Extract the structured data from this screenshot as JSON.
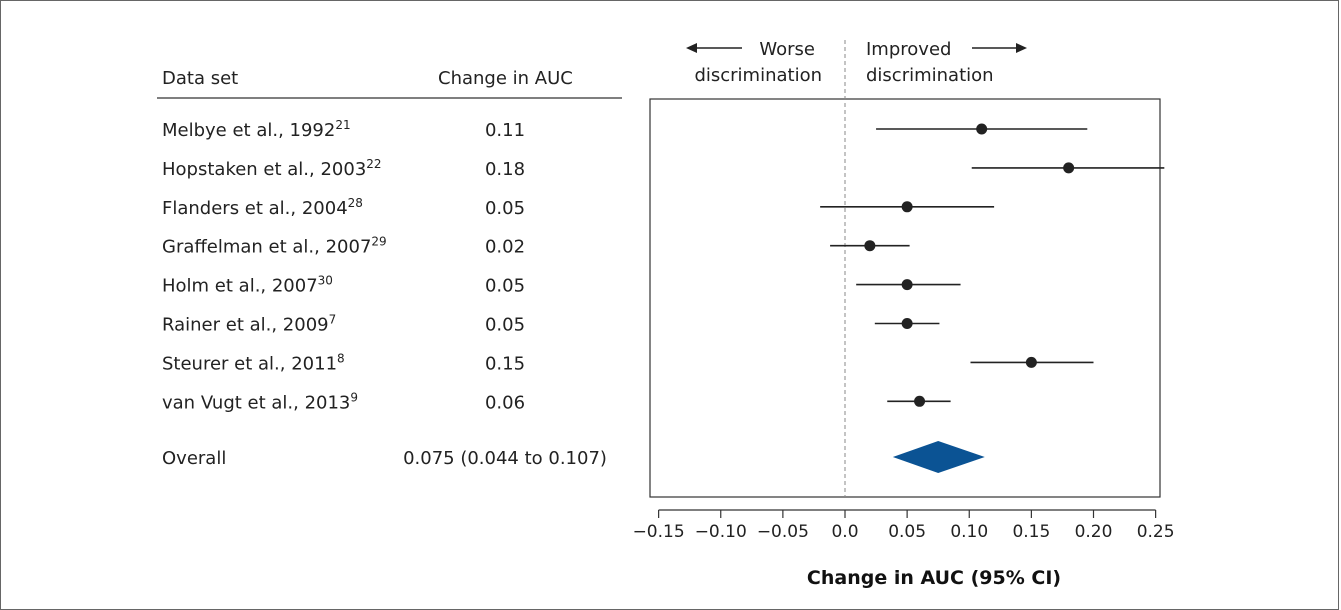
{
  "chart_data": {
    "type": "forest",
    "columns": {
      "dataset": "Data set",
      "change": "Change in AUC"
    },
    "xlabel": "Change in AUC (95% CI)",
    "direction_labels": {
      "left": [
        "Worse",
        "discrimination"
      ],
      "right": [
        "Improved",
        "discrimination"
      ]
    },
    "xlim": [
      -0.16,
      0.26
    ],
    "xticks": [
      -0.15,
      -0.1,
      -0.05,
      0.0,
      0.05,
      0.1,
      0.15,
      0.2,
      0.25
    ],
    "xtick_labels": [
      "−0.15",
      "−0.10",
      "−0.05",
      "0.0",
      "0.05",
      "0.10",
      "0.15",
      "0.20",
      "0.25"
    ],
    "reference_line": 0.0,
    "studies": [
      {
        "name": "Melbye et al., 1992",
        "ref": "21",
        "change_label": "0.11",
        "estimate": 0.11,
        "ci_low": 0.025,
        "ci_high": 0.195
      },
      {
        "name": "Hopstaken et al., 2003",
        "ref": "22",
        "change_label": "0.18",
        "estimate": 0.18,
        "ci_low": 0.102,
        "ci_high": 0.257
      },
      {
        "name": "Flanders et al., 2004",
        "ref": "28",
        "change_label": "0.05",
        "estimate": 0.05,
        "ci_low": -0.02,
        "ci_high": 0.12
      },
      {
        "name": "Graffelman et al., 2007",
        "ref": "29",
        "change_label": "0.02",
        "estimate": 0.02,
        "ci_low": -0.012,
        "ci_high": 0.052
      },
      {
        "name": "Holm et al., 2007",
        "ref": "30",
        "change_label": "0.05",
        "estimate": 0.05,
        "ci_low": 0.009,
        "ci_high": 0.093
      },
      {
        "name": "Rainer et al., 2009",
        "ref": "7",
        "change_label": "0.05",
        "estimate": 0.05,
        "ci_low": 0.024,
        "ci_high": 0.076
      },
      {
        "name": "Steurer et al., 2011",
        "ref": "8",
        "change_label": "0.15",
        "estimate": 0.15,
        "ci_low": 0.101,
        "ci_high": 0.2
      },
      {
        "name": "van Vugt et al., 2013",
        "ref": "9",
        "change_label": "0.06",
        "estimate": 0.06,
        "ci_low": 0.034,
        "ci_high": 0.085
      }
    ],
    "overall": {
      "name": "Overall",
      "change_label": "0.075 (0.044 to 0.107)",
      "estimate": 0.075,
      "ci_low": 0.044,
      "ci_high": 0.107
    },
    "colors": {
      "diamond": "#0b5394",
      "ink": "#222222"
    }
  }
}
